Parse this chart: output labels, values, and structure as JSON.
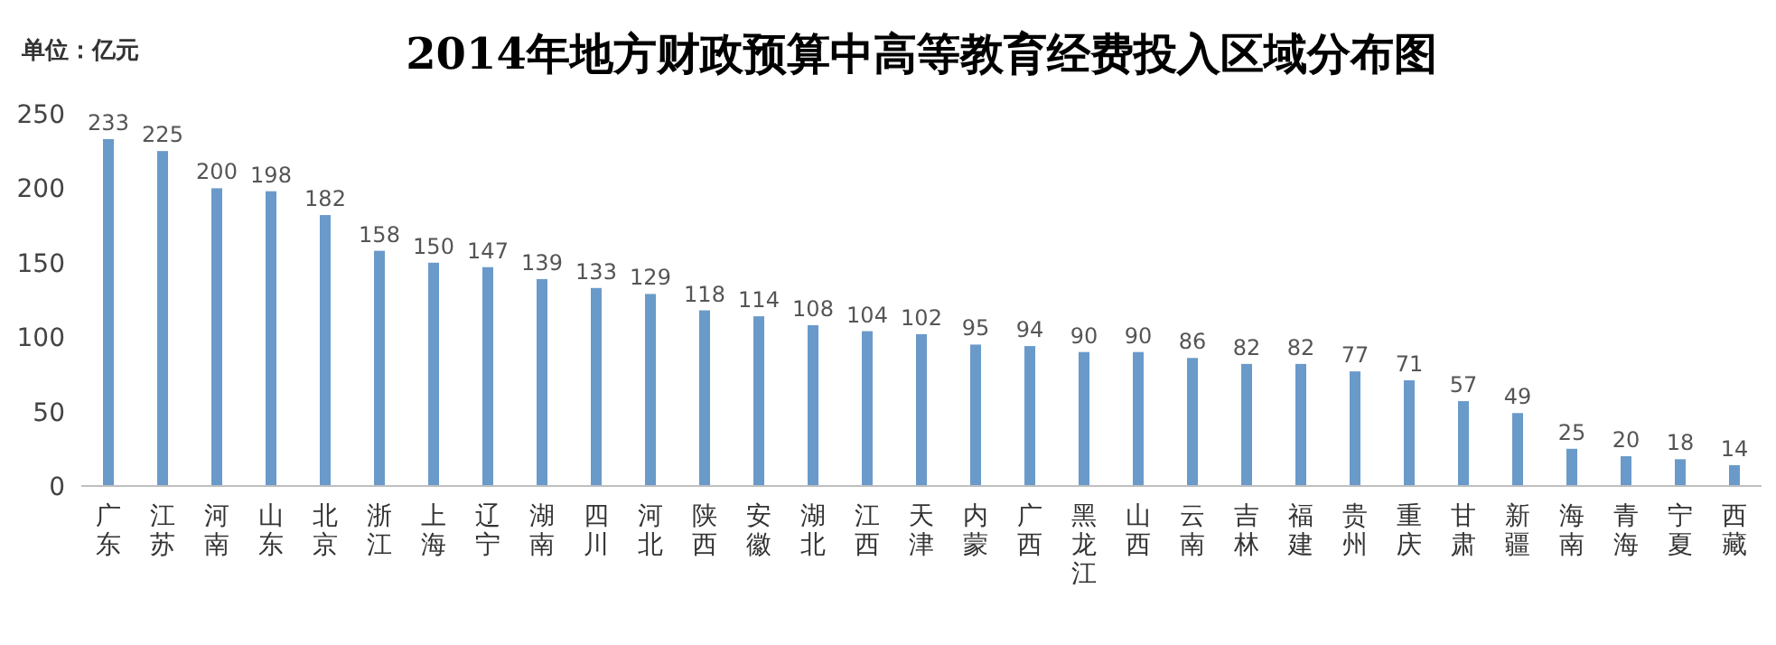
{
  "chart_data": {
    "type": "bar",
    "title": "2014年地方财政预算中高等教育经费投入区域分布图",
    "annotations": [
      "单位：亿元"
    ],
    "categories": [
      "广东",
      "江苏",
      "河南",
      "山东",
      "北京",
      "浙江",
      "上海",
      "辽宁",
      "湖南",
      "四川",
      "河北",
      "陕西",
      "安徽",
      "湖北",
      "江西",
      "天津",
      "内蒙",
      "广西",
      "黑龙江",
      "山西",
      "云南",
      "吉林",
      "福建",
      "贵州",
      "重庆",
      "甘肃",
      "新疆",
      "海南",
      "青海",
      "宁夏",
      "西藏"
    ],
    "values": [
      233,
      225,
      200,
      198,
      182,
      158,
      150,
      147,
      139,
      133,
      129,
      118,
      114,
      108,
      104,
      102,
      95,
      94,
      90,
      90,
      86,
      82,
      82,
      77,
      71,
      57,
      49,
      25,
      20,
      18,
      14
    ],
    "color": "#6a9ac9",
    "ylim": [
      0,
      250
    ],
    "yticks": [
      0,
      50,
      100,
      150,
      200,
      250
    ],
    "data_labels": true
  }
}
